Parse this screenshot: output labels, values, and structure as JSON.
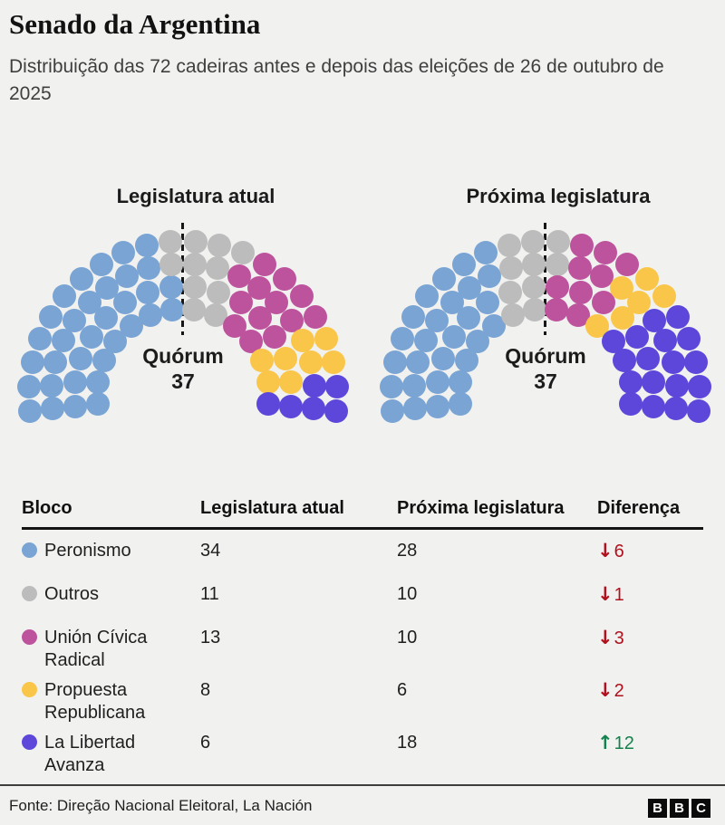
{
  "colors": {
    "background": "#f1f1ef",
    "positive": "#15824d",
    "negative": "#b0111d"
  },
  "header": {
    "title": "Senado da Argentina",
    "subtitle": "Distribuição das 72 cadeiras antes e depois das eleições de 26 de outubro de 2025"
  },
  "charts": {
    "total_seats": 72,
    "quorum": {
      "label": "Quórum",
      "value": "37"
    },
    "current": {
      "title": "Legislatura atual"
    },
    "next": {
      "title": "Próxima legislatura"
    }
  },
  "parties": [
    {
      "name": "Peronismo",
      "color": "#79a4d4",
      "current": 34,
      "next": 28,
      "diff_arrow": "↓",
      "diff_value": "6",
      "diff_dir": "down"
    },
    {
      "name": "Outros",
      "color": "#bcbcbc",
      "current": 11,
      "next": 10,
      "diff_arrow": "↓",
      "diff_value": "1",
      "diff_dir": "down"
    },
    {
      "name": "Unión Cívica Radical",
      "color": "#bd539d",
      "current": 13,
      "next": 10,
      "diff_arrow": "↓",
      "diff_value": "3",
      "diff_dir": "down"
    },
    {
      "name": "Propuesta Republicana",
      "color": "#f9c64a",
      "current": 8,
      "next": 6,
      "diff_arrow": "↓",
      "diff_value": "2",
      "diff_dir": "down"
    },
    {
      "name": "La Libertad Avanza",
      "color": "#5c47da",
      "current": 6,
      "next": 18,
      "diff_arrow": "↑",
      "diff_value": "12",
      "diff_dir": "up"
    }
  ],
  "table": {
    "headers": [
      "Bloco",
      "Legislatura atual",
      "Próxima legislatura",
      "Diferença"
    ]
  },
  "footer": {
    "source": "Fonte: Direção Nacional Eleitoral, La Nación",
    "logo": [
      "B",
      "B",
      "C"
    ]
  },
  "chart_data": [
    {
      "type": "pie",
      "variant": "parliament-hemicycle",
      "title": "Legislatura atual",
      "total_seats": 72,
      "quorum": 37,
      "categories": [
        "Peronismo",
        "Outros",
        "Unión Cívica Radical",
        "Propuesta Republicana",
        "La Libertad Avanza"
      ],
      "values": [
        34,
        11,
        13,
        8,
        6
      ],
      "colors": [
        "#79a4d4",
        "#bcbcbc",
        "#bd539d",
        "#f9c64a",
        "#5c47da"
      ],
      "annotations": [
        "Quórum 37"
      ]
    },
    {
      "type": "pie",
      "variant": "parliament-hemicycle",
      "title": "Próxima legislatura",
      "total_seats": 72,
      "quorum": 37,
      "categories": [
        "Peronismo",
        "Outros",
        "Unión Cívica Radical",
        "Propuesta Republicana",
        "La Libertad Avanza"
      ],
      "values": [
        28,
        10,
        10,
        6,
        18
      ],
      "colors": [
        "#79a4d4",
        "#bcbcbc",
        "#bd539d",
        "#f9c64a",
        "#5c47da"
      ],
      "annotations": [
        "Quórum 37"
      ]
    },
    {
      "type": "table",
      "columns": [
        "Bloco",
        "Legislatura atual",
        "Próxima legislatura",
        "Diferença"
      ],
      "rows": [
        [
          "Peronismo",
          "34",
          "28",
          "↓6"
        ],
        [
          "Outros",
          "11",
          "10",
          "↓1"
        ],
        [
          "Unión Cívica Radical",
          "13",
          "10",
          "↓3"
        ],
        [
          "Propuesta Republicana",
          "8",
          "6",
          "↓2"
        ],
        [
          "La Libertad Avanza",
          "6",
          "18",
          "↑12"
        ]
      ]
    }
  ]
}
